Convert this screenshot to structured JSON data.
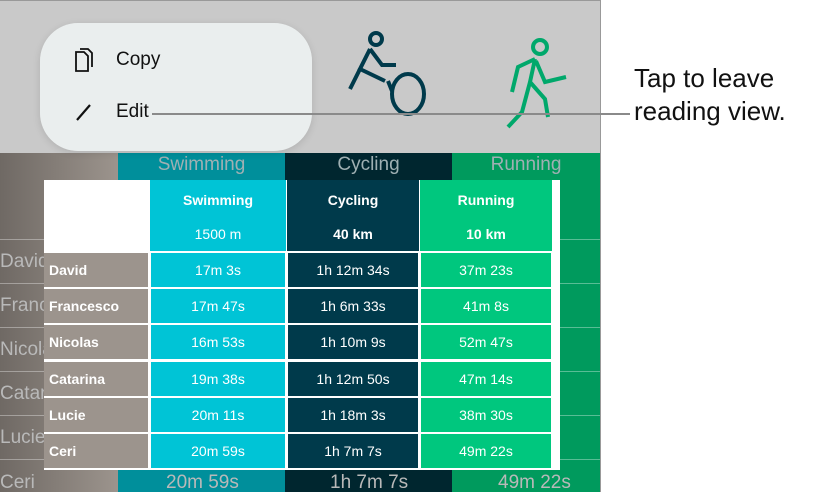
{
  "menu": {
    "items": [
      {
        "label": "Copy",
        "icon": "copy-icon"
      },
      {
        "label": "Edit",
        "icon": "pencil-icon"
      }
    ]
  },
  "callout": {
    "line1": "Tap to leave",
    "line2": "reading view."
  },
  "colors": {
    "swimming": "#00c4d6",
    "cycling": "#003a4b",
    "running": "#00c77e",
    "names": "#9c948d"
  },
  "table": {
    "columns": [
      {
        "sport": "Swimming",
        "distance": "1500 m",
        "icon": "swimmer-icon"
      },
      {
        "sport": "Cycling",
        "distance": "40 km",
        "icon": "cyclist-icon"
      },
      {
        "sport": "Running",
        "distance": "10 km",
        "icon": "runner-icon"
      }
    ],
    "rows": [
      {
        "name": "David",
        "times": [
          "17m 3s",
          "1h 12m 34s",
          "37m 23s"
        ]
      },
      {
        "name": "Francesco",
        "times": [
          "17m 47s",
          "1h 6m 33s",
          "41m 8s"
        ]
      },
      {
        "name": "Nicolas",
        "times": [
          "16m 53s",
          "1h 10m 9s",
          "52m 47s"
        ]
      },
      {
        "name": "Catarina",
        "times": [
          "19m 38s",
          "1h 12m 50s",
          "47m 14s"
        ]
      },
      {
        "name": "Lucie",
        "times": [
          "20m 11s",
          "1h 18m 3s",
          "38m 30s"
        ]
      },
      {
        "name": "Ceri",
        "times": [
          "20m 59s",
          "1h 7m 7s",
          "49m 22s"
        ]
      }
    ]
  }
}
